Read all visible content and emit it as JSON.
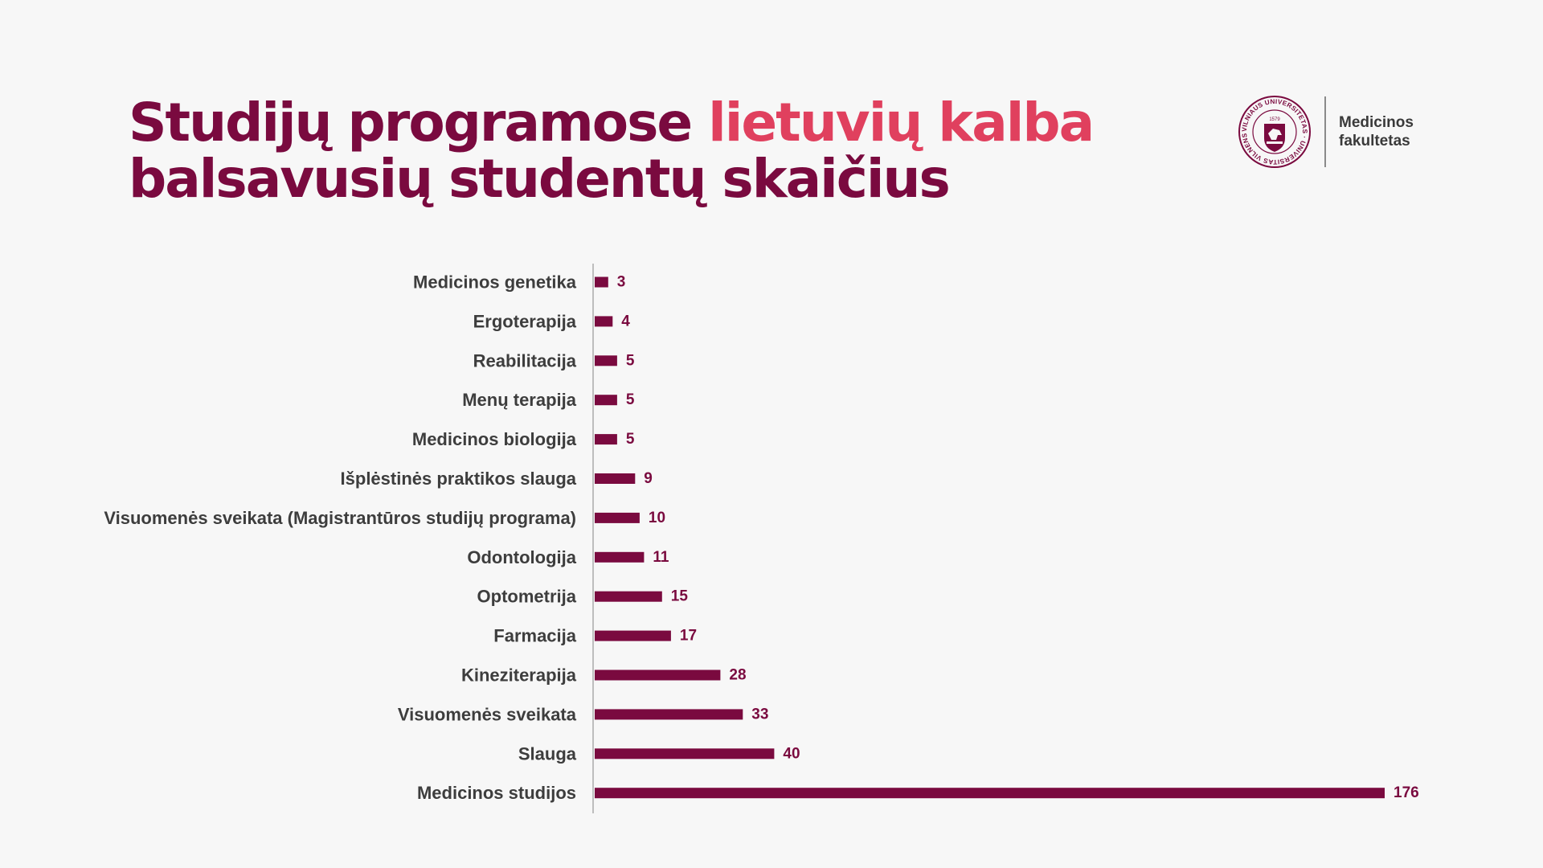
{
  "header": {
    "title_part1": "Studijų programose ",
    "title_accent": "lietuvių kalba",
    "title_line2": "balsavusių studentų skaičius"
  },
  "logo": {
    "seal_text": "VILNIAUS UNIVERSITETAS · UNIVERSITAS VILNENSIS",
    "seal_year": "1579",
    "faculty_line1": "Medicinos",
    "faculty_line2": "fakultetas"
  },
  "colors": {
    "bar": "#7a0a3f",
    "title": "#7a0a3f",
    "accent": "#e0405e",
    "axis": "#bdbdbd"
  },
  "chart_data": {
    "type": "bar",
    "orientation": "horizontal",
    "title": "Studijų programose lietuvių kalba balsavusių studentų skaičius",
    "xlabel": "",
    "ylabel": "",
    "xlim": [
      0,
      176
    ],
    "grid": false,
    "legend": "none",
    "categories": [
      "Medicinos genetika",
      "Ergoterapija",
      "Reabilitacija",
      "Menų terapija",
      "Medicinos biologija",
      "Išplėstinės praktikos slauga",
      "Visuomenės sveikata (Magistrantūros studijų programa)",
      "Odontologija",
      "Optometrija",
      "Farmacija",
      "Kineziterapija",
      "Visuomenės sveikata",
      "Slauga",
      "Medicinos studijos"
    ],
    "values": [
      3,
      4,
      5,
      5,
      5,
      9,
      10,
      11,
      15,
      17,
      28,
      33,
      40,
      176
    ]
  }
}
